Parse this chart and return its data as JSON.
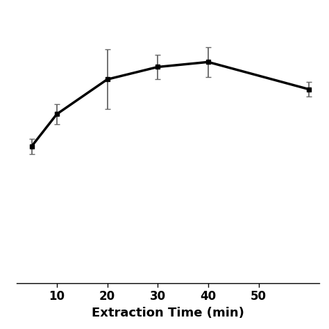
{
  "x": [
    5,
    10,
    20,
    30,
    40,
    60
  ],
  "y": [
    0.55,
    0.68,
    0.82,
    0.87,
    0.89,
    0.78
  ],
  "yerr": [
    0.03,
    0.04,
    0.12,
    0.05,
    0.06,
    0.03
  ],
  "xlabel": "Extraction Time (min)",
  "ylabel": "",
  "line_color": "#000000",
  "marker": "s",
  "markersize": 5,
  "linewidth": 2.5,
  "xticks": [
    10,
    20,
    30,
    40,
    50
  ],
  "xlim": [
    2,
    62
  ],
  "ylim": [
    0.0,
    1.1
  ],
  "background_color": "#ffffff",
  "ecolor": "#666666",
  "capsize": 3,
  "elinewidth": 1.3,
  "xlabel_fontsize": 13,
  "xlabel_fontweight": "bold"
}
